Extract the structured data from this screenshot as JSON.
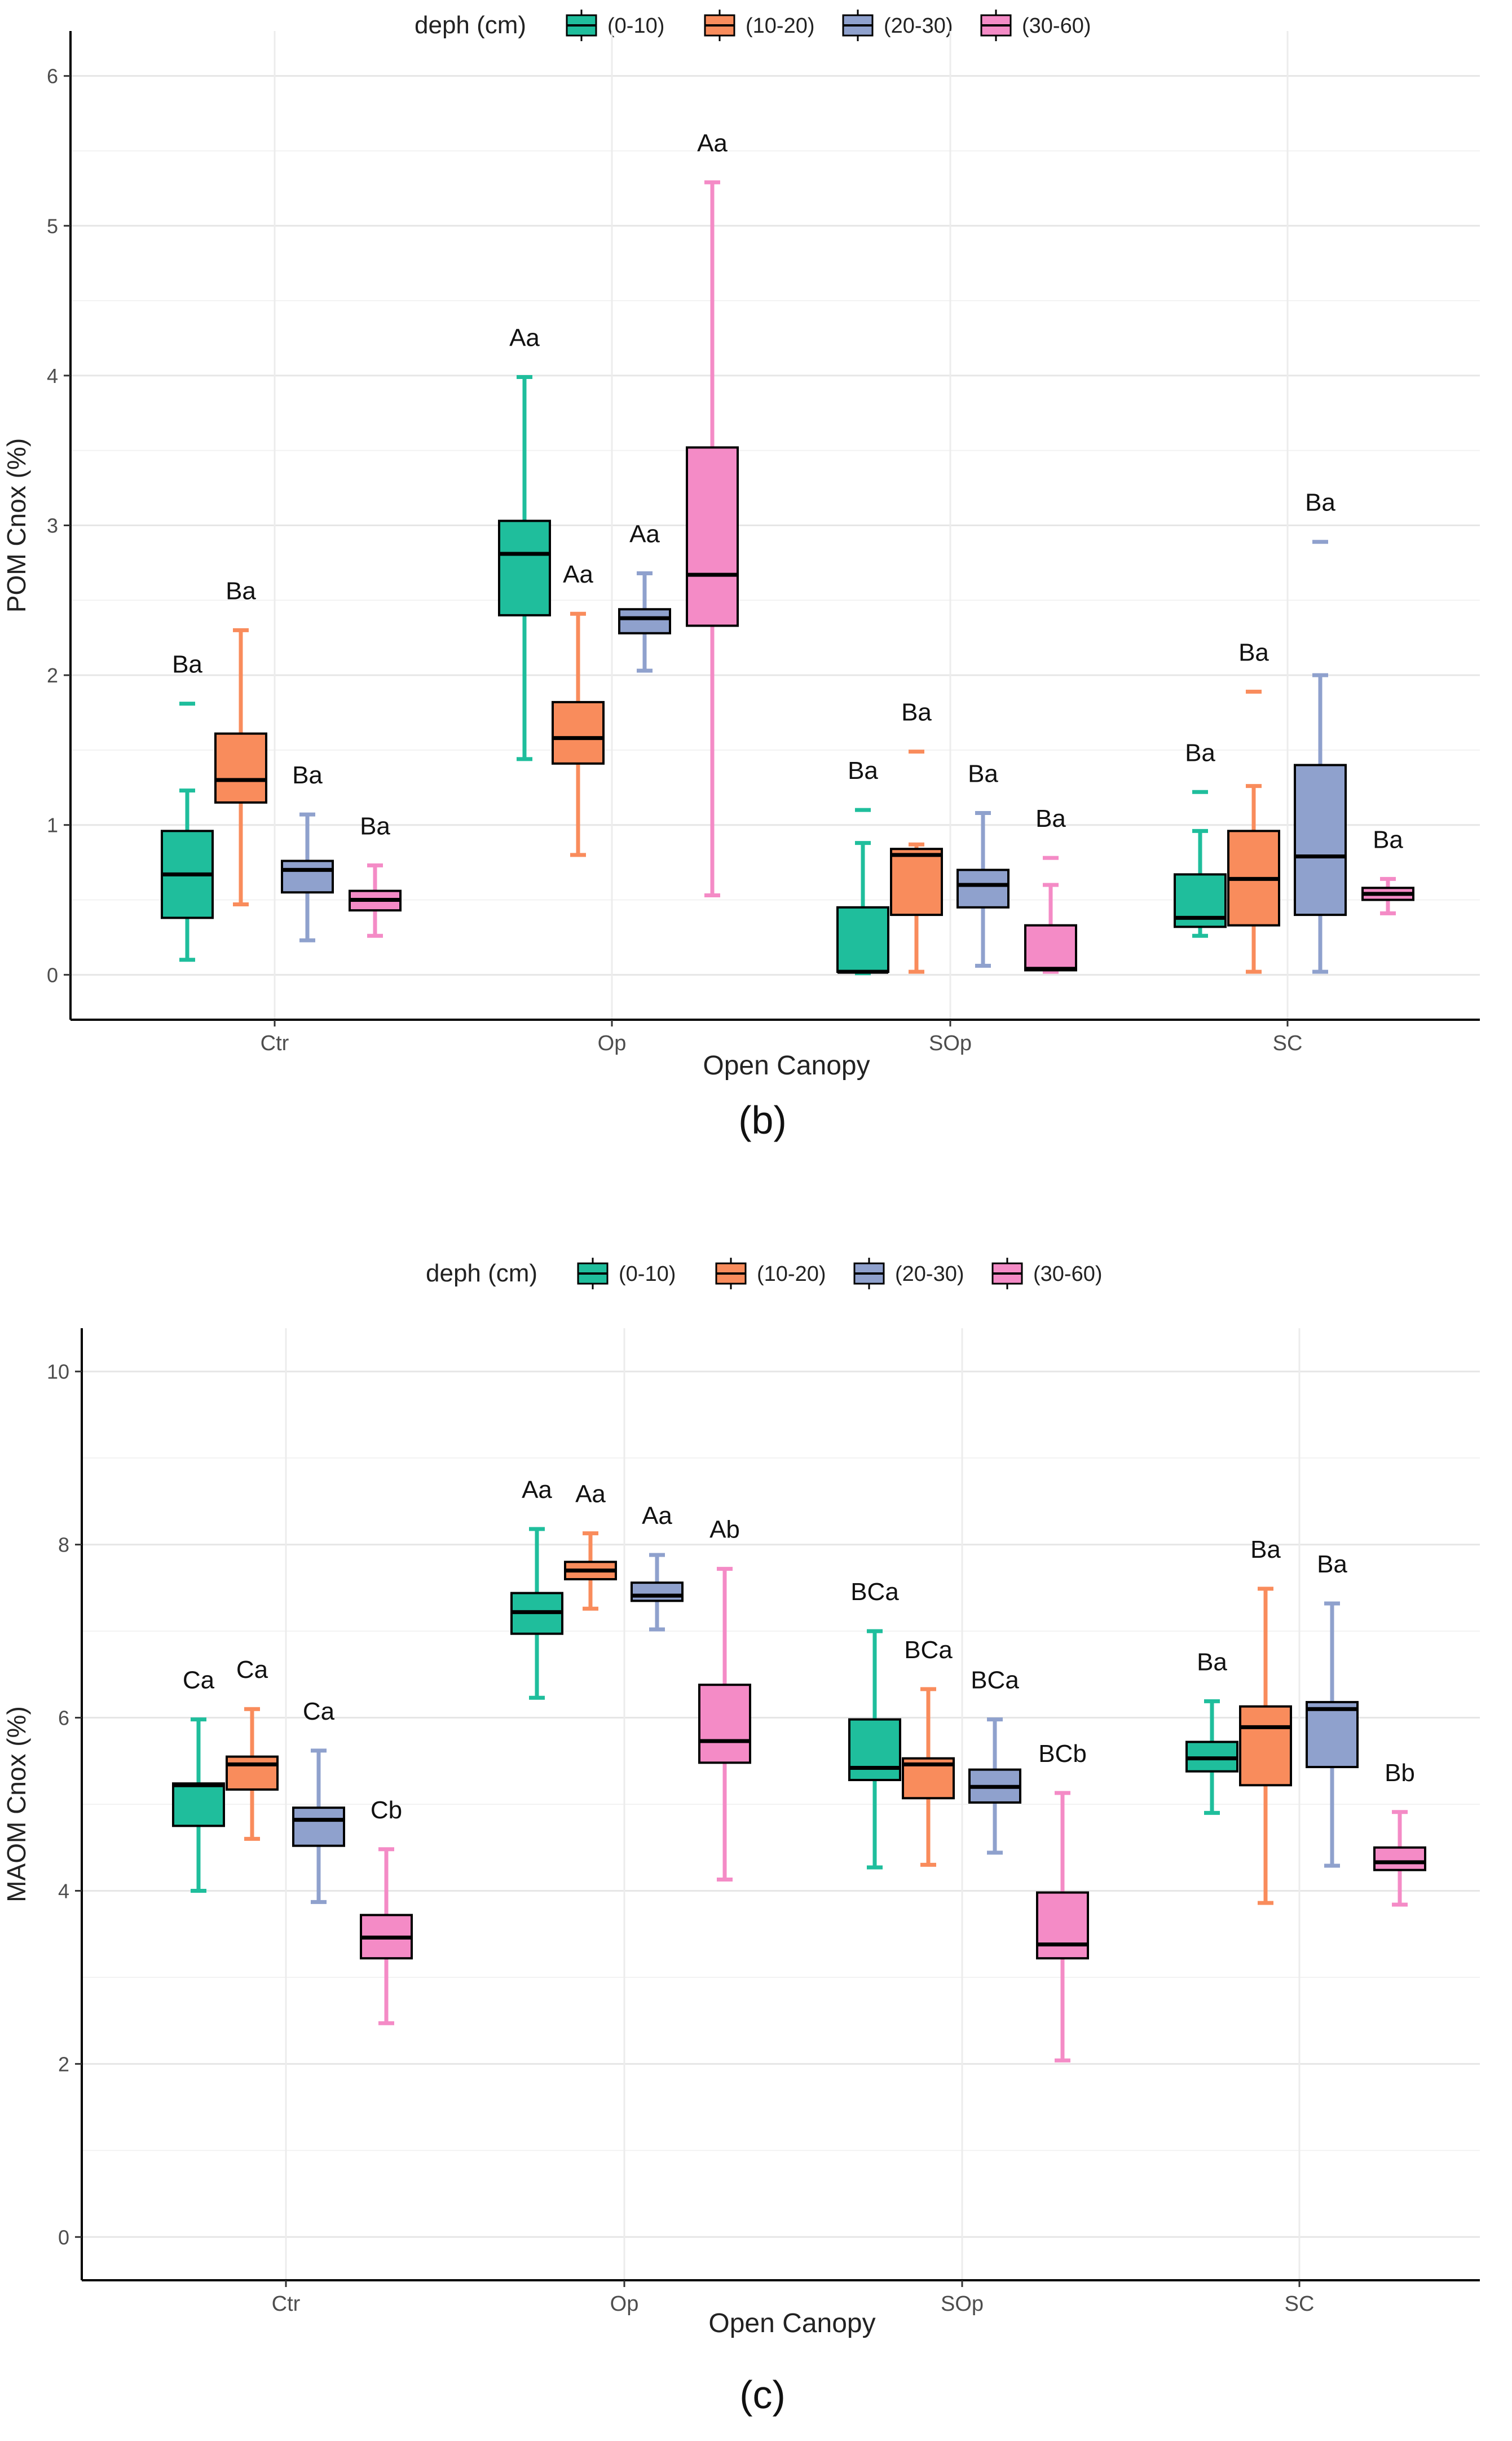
{
  "chart_data": [
    {
      "panel_label": "(b)",
      "type": "boxplot",
      "xlabel": "Open Canopy",
      "ylabel": "POM Cnox (%)",
      "ylim": [
        -0.3,
        6.3
      ],
      "yticks": [
        "0",
        "1",
        "2",
        "3",
        "4",
        "5",
        "6"
      ],
      "categories": [
        "Ctr",
        "Op",
        "SOp",
        "SC"
      ],
      "legend": {
        "title": "deph (cm)",
        "position": "top",
        "entries": [
          {
            "label": "(0-10)",
            "color": "#1fbe9c"
          },
          {
            "label": "(10-20)",
            "color": "#f98c5c"
          },
          {
            "label": "(20-30)",
            "color": "#8fa1cd"
          },
          {
            "label": "(30-60)",
            "color": "#f48bc6"
          }
        ]
      },
      "groups": [
        {
          "category": "Ctr",
          "boxes": [
            {
              "depth": "(0-10)",
              "min": 0.1,
              "q1": 0.38,
              "median": 0.67,
              "q3": 0.96,
              "max": 1.23,
              "outliers": [
                1.81
              ],
              "label": "Ba"
            },
            {
              "depth": "(10-20)",
              "min": 0.47,
              "q1": 1.15,
              "median": 1.3,
              "q3": 1.61,
              "max": 2.3,
              "outliers": [],
              "label": "Ba"
            },
            {
              "depth": "(20-30)",
              "min": 0.23,
              "q1": 0.55,
              "median": 0.7,
              "q3": 0.76,
              "max": 1.07,
              "outliers": [],
              "label": "Ba"
            },
            {
              "depth": "(30-60)",
              "min": 0.26,
              "q1": 0.43,
              "median": 0.5,
              "q3": 0.56,
              "max": 0.73,
              "outliers": [],
              "label": "Ba"
            }
          ]
        },
        {
          "category": "Op",
          "boxes": [
            {
              "depth": "(0-10)",
              "min": 1.44,
              "q1": 2.4,
              "median": 2.81,
              "q3": 3.03,
              "max": 3.99,
              "outliers": [],
              "label": "Aa"
            },
            {
              "depth": "(10-20)",
              "min": 0.8,
              "q1": 1.41,
              "median": 1.58,
              "q3": 1.82,
              "max": 2.41,
              "outliers": [],
              "label": "Aa"
            },
            {
              "depth": "(20-30)",
              "min": 2.03,
              "q1": 2.28,
              "median": 2.38,
              "q3": 2.44,
              "max": 2.68,
              "outliers": [],
              "label": "Aa"
            },
            {
              "depth": "(30-60)",
              "min": 0.53,
              "q1": 2.33,
              "median": 2.67,
              "q3": 3.52,
              "max": 5.29,
              "outliers": [],
              "label": "Aa"
            }
          ]
        },
        {
          "category": "SOp",
          "boxes": [
            {
              "depth": "(0-10)",
              "min": 0.01,
              "q1": 0.02,
              "median": 0.02,
              "q3": 0.45,
              "max": 0.88,
              "outliers": [
                1.1
              ],
              "label": "Ba"
            },
            {
              "depth": "(10-20)",
              "min": 0.02,
              "q1": 0.4,
              "median": 0.8,
              "q3": 0.84,
              "max": 0.87,
              "outliers": [
                1.49
              ],
              "label": "Ba"
            },
            {
              "depth": "(20-30)",
              "min": 0.06,
              "q1": 0.45,
              "median": 0.6,
              "q3": 0.7,
              "max": 1.08,
              "outliers": [],
              "label": "Ba"
            },
            {
              "depth": "(30-60)",
              "min": 0.02,
              "q1": 0.03,
              "median": 0.04,
              "q3": 0.33,
              "max": 0.6,
              "outliers": [
                0.78
              ],
              "label": "Ba"
            }
          ]
        },
        {
          "category": "SC",
          "boxes": [
            {
              "depth": "(0-10)",
              "min": 0.26,
              "q1": 0.32,
              "median": 0.38,
              "q3": 0.67,
              "max": 0.96,
              "outliers": [
                1.22
              ],
              "label": "Ba"
            },
            {
              "depth": "(10-20)",
              "min": 0.02,
              "q1": 0.33,
              "median": 0.64,
              "q3": 0.96,
              "max": 1.26,
              "outliers": [
                1.89
              ],
              "label": "Ba"
            },
            {
              "depth": "(20-30)",
              "min": 0.02,
              "q1": 0.4,
              "median": 0.79,
              "q3": 1.4,
              "max": 2.0,
              "outliers": [
                2.89
              ],
              "label": "Ba"
            },
            {
              "depth": "(30-60)",
              "min": 0.41,
              "q1": 0.5,
              "median": 0.54,
              "q3": 0.58,
              "max": 0.64,
              "outliers": [],
              "label": "Ba"
            }
          ]
        }
      ]
    },
    {
      "panel_label": "(c)",
      "type": "boxplot",
      "xlabel": "Open Canopy",
      "ylabel": "MAOM Cnox (%)",
      "ylim": [
        -0.5,
        10.5
      ],
      "yticks": [
        "0",
        "2",
        "4",
        "6",
        "8",
        "10"
      ],
      "categories": [
        "Ctr",
        "Op",
        "SOp",
        "SC"
      ],
      "legend": {
        "title": "deph (cm)",
        "position": "top",
        "entries": [
          {
            "label": "(0-10)",
            "color": "#1fbe9c"
          },
          {
            "label": "(10-20)",
            "color": "#f98c5c"
          },
          {
            "label": "(20-30)",
            "color": "#8fa1cd"
          },
          {
            "label": "(30-60)",
            "color": "#f48bc6"
          }
        ]
      },
      "groups": [
        {
          "category": "Ctr",
          "boxes": [
            {
              "depth": "(0-10)",
              "min": 4.0,
              "q1": 4.75,
              "median": 5.22,
              "q3": 5.24,
              "max": 5.98,
              "outliers": [],
              "label": "Ca"
            },
            {
              "depth": "(10-20)",
              "min": 4.6,
              "q1": 5.17,
              "median": 5.46,
              "q3": 5.55,
              "max": 6.1,
              "outliers": [],
              "label": "Ca"
            },
            {
              "depth": "(20-30)",
              "min": 3.87,
              "q1": 4.52,
              "median": 4.82,
              "q3": 4.96,
              "max": 5.62,
              "outliers": [],
              "label": "Ca"
            },
            {
              "depth": "(30-60)",
              "min": 2.47,
              "q1": 3.22,
              "median": 3.46,
              "q3": 3.72,
              "max": 4.48,
              "outliers": [],
              "label": "Cb"
            }
          ]
        },
        {
          "category": "Op",
          "boxes": [
            {
              "depth": "(0-10)",
              "min": 6.23,
              "q1": 6.97,
              "median": 7.22,
              "q3": 7.44,
              "max": 8.18,
              "outliers": [],
              "label": "Aa"
            },
            {
              "depth": "(10-20)",
              "min": 7.26,
              "q1": 7.6,
              "median": 7.7,
              "q3": 7.8,
              "max": 8.13,
              "outliers": [],
              "label": "Aa"
            },
            {
              "depth": "(20-30)",
              "min": 7.02,
              "q1": 7.35,
              "median": 7.41,
              "q3": 7.56,
              "max": 7.88,
              "outliers": [],
              "label": "Aa"
            },
            {
              "depth": "(30-60)",
              "min": 4.13,
              "q1": 5.48,
              "median": 5.73,
              "q3": 6.38,
              "max": 7.72,
              "outliers": [],
              "label": "Ab"
            }
          ]
        },
        {
          "category": "SOp",
          "boxes": [
            {
              "depth": "(0-10)",
              "min": 4.27,
              "q1": 5.28,
              "median": 5.42,
              "q3": 5.98,
              "max": 7.0,
              "outliers": [],
              "label": "BCa"
            },
            {
              "depth": "(10-20)",
              "min": 4.3,
              "q1": 5.07,
              "median": 5.46,
              "q3": 5.53,
              "max": 6.33,
              "outliers": [],
              "label": "BCa"
            },
            {
              "depth": "(20-30)",
              "min": 4.44,
              "q1": 5.02,
              "median": 5.2,
              "q3": 5.4,
              "max": 5.98,
              "outliers": [],
              "label": "BCa"
            },
            {
              "depth": "(30-60)",
              "min": 2.04,
              "q1": 3.22,
              "median": 3.38,
              "q3": 3.98,
              "max": 5.13,
              "outliers": [],
              "label": "BCb"
            }
          ]
        },
        {
          "category": "SC",
          "boxes": [
            {
              "depth": "(0-10)",
              "min": 4.9,
              "q1": 5.38,
              "median": 5.53,
              "q3": 5.72,
              "max": 6.19,
              "outliers": [],
              "label": "Ba"
            },
            {
              "depth": "(10-20)",
              "min": 3.86,
              "q1": 5.22,
              "median": 5.89,
              "q3": 6.13,
              "max": 7.49,
              "outliers": [],
              "label": "Ba"
            },
            {
              "depth": "(20-30)",
              "min": 4.29,
              "q1": 5.43,
              "median": 6.1,
              "q3": 6.18,
              "max": 7.32,
              "outliers": [],
              "label": "Ba"
            },
            {
              "depth": "(30-60)",
              "min": 3.84,
              "q1": 4.24,
              "median": 4.33,
              "q3": 4.5,
              "max": 4.91,
              "outliers": [],
              "label": "Bb"
            }
          ]
        }
      ]
    }
  ]
}
